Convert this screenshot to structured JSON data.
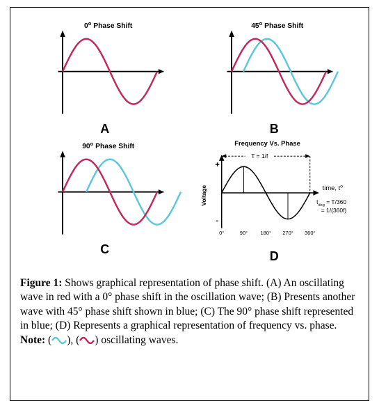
{
  "figure": {
    "panels": {
      "A": {
        "title_prefix": "0",
        "title_suffix": " Phase Shift",
        "title_fontsize": 11,
        "title_fontweight": "bold",
        "has_second_wave": false,
        "phase_deg": 0,
        "wave1_color": "#c1285b",
        "wave2_color": "#5bc7dd",
        "axis_color": "#000000",
        "linewidth": 2.4,
        "label": "A"
      },
      "B": {
        "title_prefix": "45",
        "title_suffix": " Phase Shift",
        "title_fontsize": 11,
        "title_fontweight": "bold",
        "has_second_wave": true,
        "phase_deg": 45,
        "wave1_color": "#c1285b",
        "wave2_color": "#5bc7dd",
        "axis_color": "#000000",
        "linewidth": 2.4,
        "label": "B"
      },
      "C": {
        "title_prefix": "90",
        "title_suffix": " Phase Shift",
        "title_fontsize": 11,
        "title_fontweight": "bold",
        "has_second_wave": true,
        "phase_deg": 90,
        "wave1_color": "#c1285b",
        "wave2_color": "#5bc7dd",
        "axis_color": "#000000",
        "linewidth": 2.4,
        "label": "C"
      },
      "D": {
        "title": "Frequency Vs. Phase",
        "title_fontsize": 10,
        "title_fontweight": "bold",
        "title_color": "#000000",
        "period_label": "T = 1/f",
        "ylabel": "Voltage",
        "yplus": "+",
        "yminus": "-",
        "xlabel": "time, t",
        "xlabel_sup": "o",
        "eq_line1_lhs": "t",
        "eq_line1_sub": "deg",
        "eq_line1_rhs": " = T/360",
        "eq_line2": "= 1/(360f)",
        "xticks": [
          "0°",
          "90°",
          "180°",
          "270°",
          "360°"
        ],
        "dash_color": "#000000",
        "wave_color": "#000000",
        "tick_color": "#000000",
        "label_fontsize": 9,
        "label": "D"
      }
    },
    "caption": {
      "lead": "Figure 1:",
      "body1": " Shows graphical representation of phase shift. (A) An oscillating wave in red with a 0° phase shift in the oscillation wave; (B) Presents another wave with 45° phase shift shown in blue; (C) The 90° phase shift represented in blue; (D) Represents a graphical representation of frequency vs. phase. ",
      "note_label": "Note:",
      "legend_tail": " oscillating waves.",
      "wave_blue": "#5bc7dd",
      "wave_red": "#c1285b"
    }
  }
}
